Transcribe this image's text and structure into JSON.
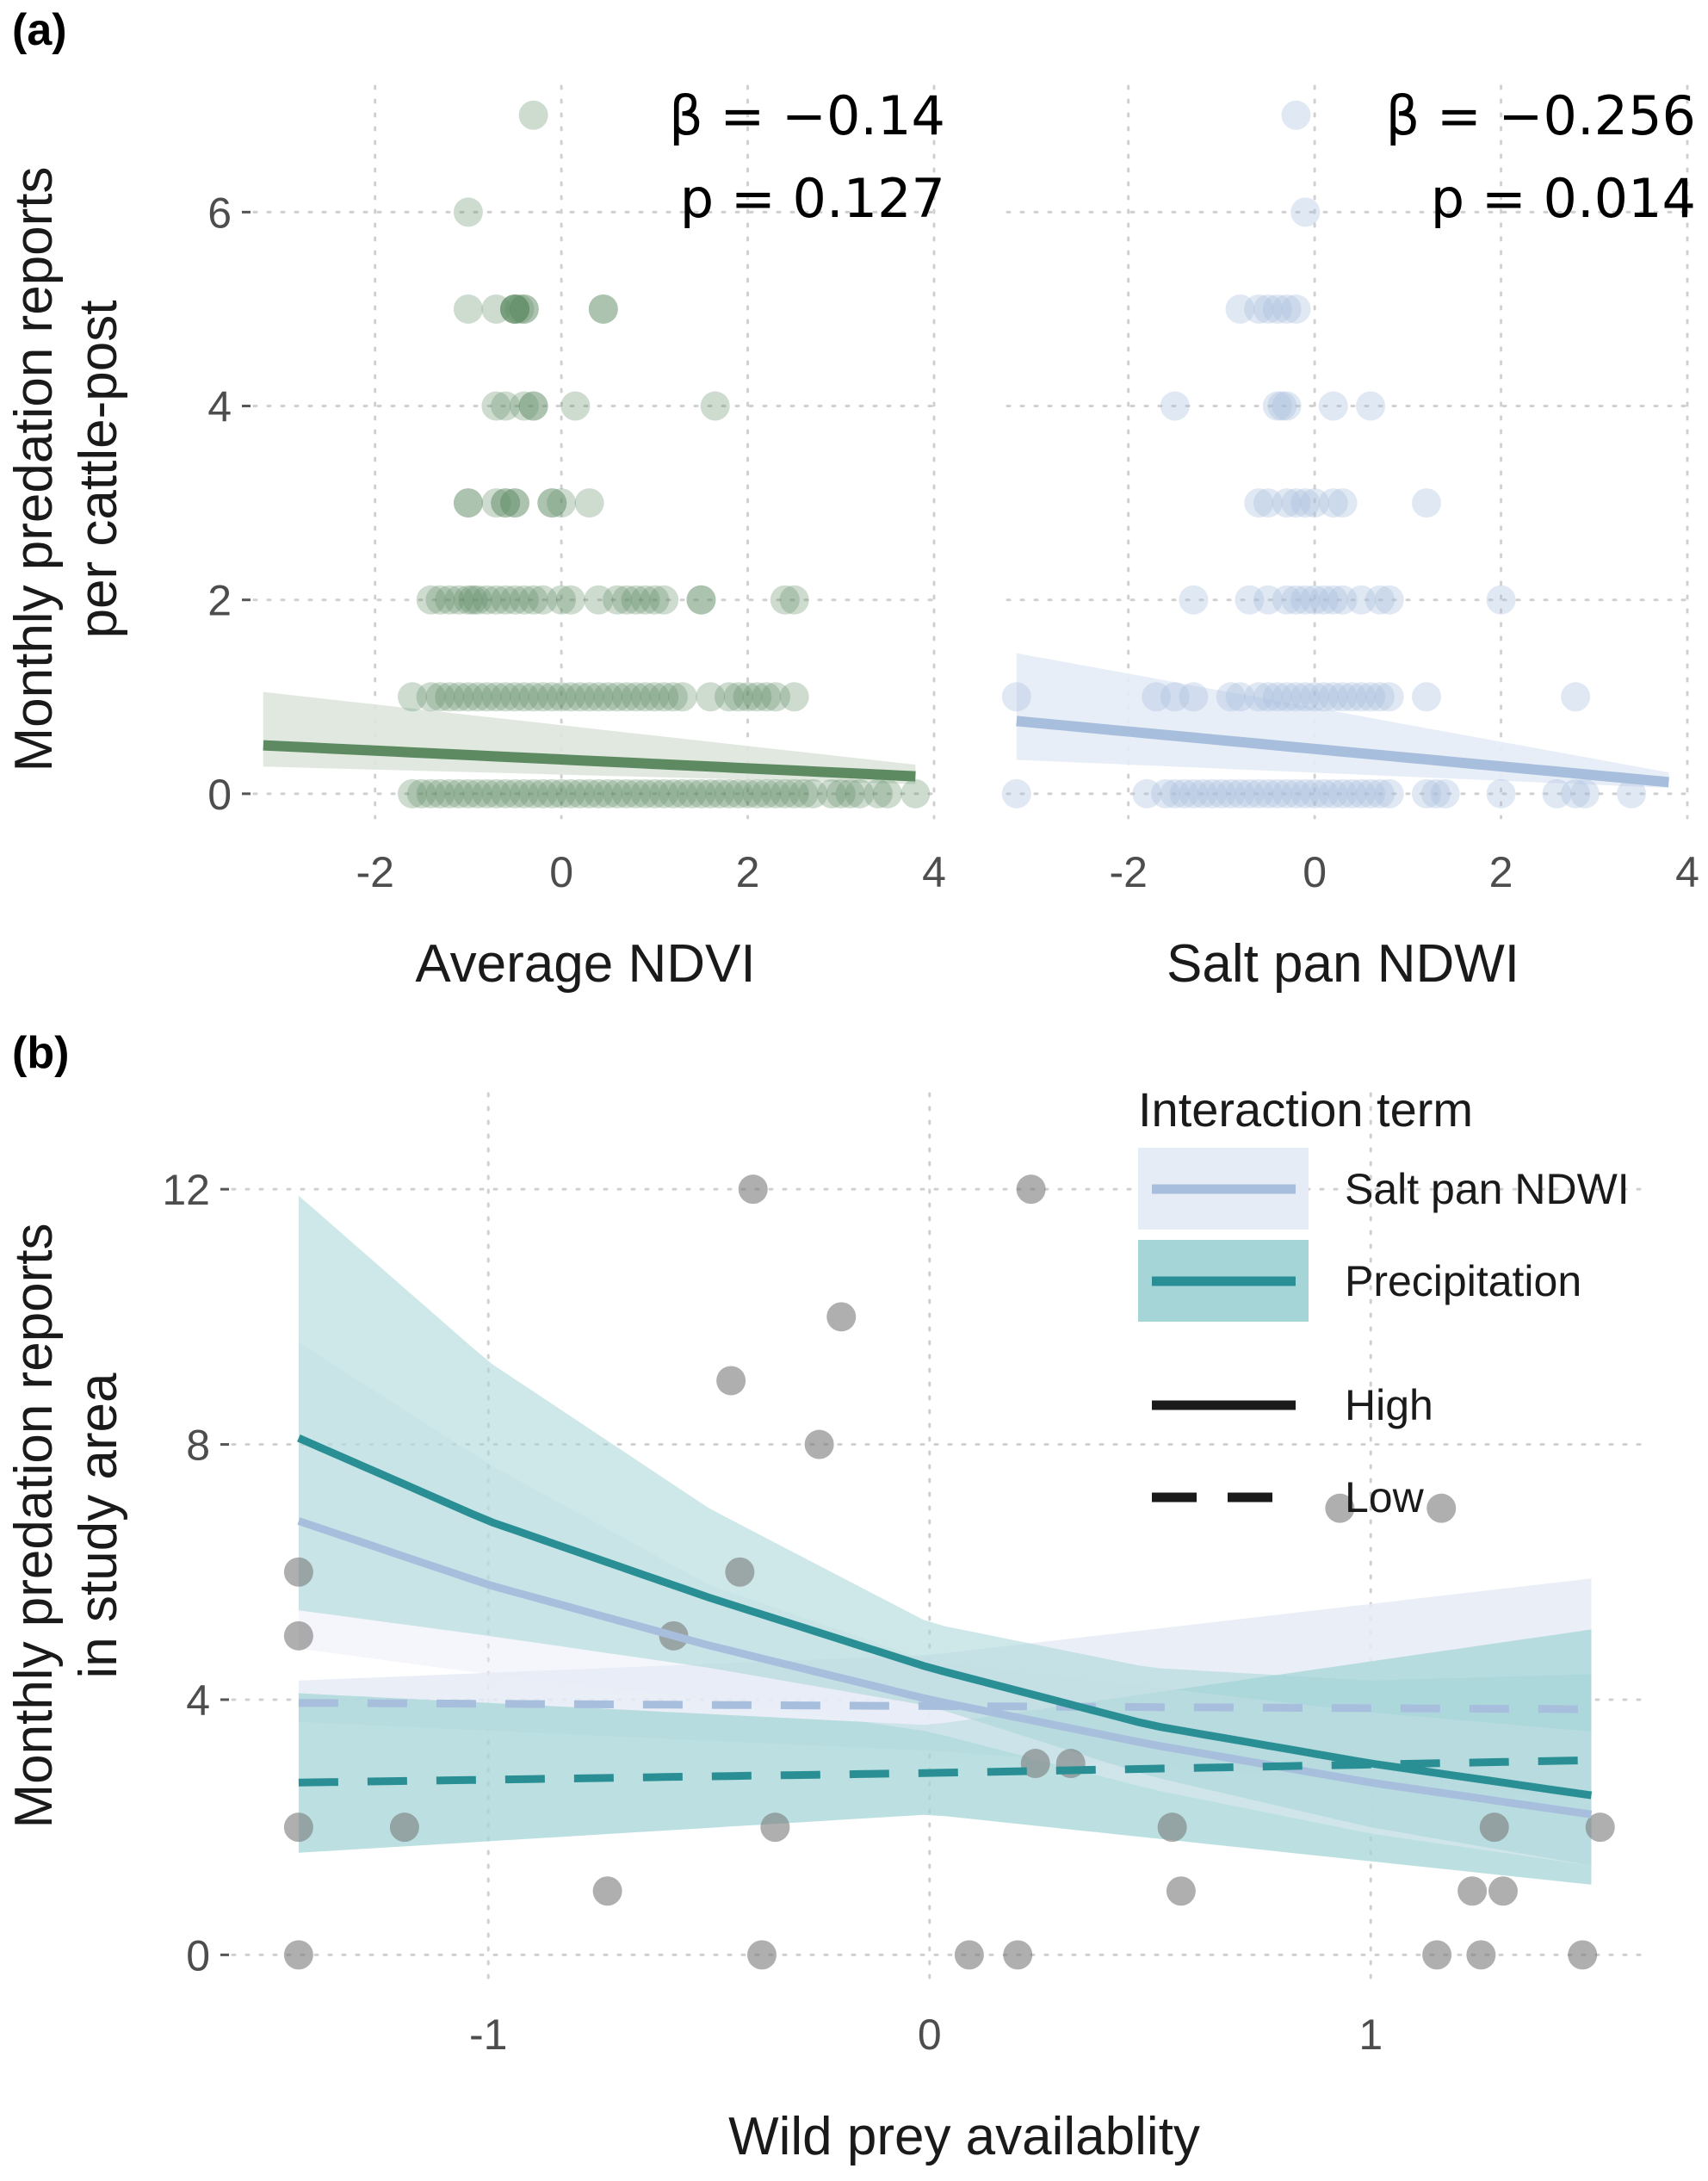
{
  "panel_a": {
    "label": "(a)",
    "ylabel_line1": "Monthly predation reports",
    "ylabel_line2": "per cattle-post",
    "left": {
      "xlabel": "Average NDVI",
      "beta_text": "β = −0.14",
      "p_text": "p = 0.127",
      "x_tick_labels": [
        "-2",
        "0",
        "2",
        "4"
      ],
      "y_tick_labels": [
        "0",
        "2",
        "4",
        "6"
      ]
    },
    "right": {
      "xlabel": "Salt pan NDWI",
      "beta_text": "β = −0.256",
      "p_text": "p = 0.014",
      "x_tick_labels": [
        "-2",
        "0",
        "2",
        "4"
      ]
    }
  },
  "panel_b": {
    "label": "(b)",
    "ylabel_line1": "Monthly predation reports",
    "ylabel_line2": "in study area",
    "xlabel": "Wild prey availablity",
    "x_tick_labels": [
      "-1",
      "0",
      "1"
    ],
    "y_tick_labels": [
      "0",
      "4",
      "8",
      "12"
    ],
    "legend": {
      "title": "Interaction term",
      "items": [
        "Salt pan NDWI",
        "Precipitation"
      ],
      "line_types": [
        "High",
        "Low"
      ]
    }
  },
  "colors": {
    "ndvi": "#5e8a62",
    "ndvi_band": "#dde6dd",
    "ndwi": "#a7bedd",
    "ndwi_band": "#e6ecf6",
    "precip": "#2a8f95",
    "precip_band": "#a6d5d7",
    "points_b": "#9e9e9e"
  },
  "chart_data": [
    {
      "type": "scatter",
      "title": "(a) Average NDVI",
      "xlabel": "Average NDVI",
      "ylabel": "Monthly predation reports per cattle-post",
      "xlim": [
        -3.3,
        4.0
      ],
      "ylim": [
        -0.25,
        7.3
      ],
      "x_ticks": [
        -2,
        0,
        2,
        4
      ],
      "y_ticks": [
        0,
        2,
        4,
        6
      ],
      "annotation": {
        "beta": -0.14,
        "p": 0.127
      },
      "points": [
        [
          -0.3,
          7
        ],
        [
          -1.0,
          6
        ],
        [
          -1.0,
          5
        ],
        [
          -0.7,
          5
        ],
        [
          -0.5,
          5
        ],
        [
          -0.5,
          5
        ],
        [
          -0.4,
          5
        ],
        [
          -0.4,
          5
        ],
        [
          -0.5,
          5
        ],
        [
          -0.5,
          5
        ],
        [
          -0.45,
          5
        ],
        [
          0.45,
          5
        ],
        [
          0.45,
          5
        ],
        [
          -0.7,
          4
        ],
        [
          -0.6,
          4
        ],
        [
          -0.3,
          4
        ],
        [
          -0.3,
          4
        ],
        [
          -0.4,
          4
        ],
        [
          0.15,
          4
        ],
        [
          1.65,
          4
        ],
        [
          -1.0,
          3
        ],
        [
          -1.0,
          3
        ],
        [
          -0.7,
          3
        ],
        [
          -0.6,
          3
        ],
        [
          -0.6,
          3
        ],
        [
          -0.5,
          3
        ],
        [
          -0.5,
          3
        ],
        [
          -0.1,
          3
        ],
        [
          -0.1,
          3
        ],
        [
          0.0,
          3
        ],
        [
          0.3,
          3
        ],
        [
          -1.4,
          2
        ],
        [
          -1.3,
          2
        ],
        [
          -1.2,
          2
        ],
        [
          -1.1,
          2
        ],
        [
          -1.0,
          2
        ],
        [
          -0.95,
          2
        ],
        [
          -0.9,
          2
        ],
        [
          -0.8,
          2
        ],
        [
          -0.7,
          2
        ],
        [
          -0.6,
          2
        ],
        [
          -0.5,
          2
        ],
        [
          -0.4,
          2
        ],
        [
          -0.3,
          2
        ],
        [
          -0.2,
          2
        ],
        [
          0.0,
          2
        ],
        [
          0.1,
          2
        ],
        [
          0.4,
          2
        ],
        [
          0.6,
          2
        ],
        [
          0.7,
          2
        ],
        [
          0.8,
          2
        ],
        [
          0.9,
          2
        ],
        [
          1.0,
          2
        ],
        [
          1.1,
          2
        ],
        [
          1.5,
          2
        ],
        [
          1.5,
          2
        ],
        [
          2.4,
          2
        ],
        [
          2.5,
          2
        ],
        [
          -1.6,
          1
        ],
        [
          -1.4,
          1
        ],
        [
          -1.3,
          1
        ],
        [
          -1.2,
          1
        ],
        [
          -1.1,
          1
        ],
        [
          -1.0,
          1
        ],
        [
          -0.9,
          1
        ],
        [
          -0.8,
          1
        ],
        [
          -0.7,
          1
        ],
        [
          -0.6,
          1
        ],
        [
          -0.5,
          1
        ],
        [
          -0.4,
          1
        ],
        [
          -0.3,
          1
        ],
        [
          -0.2,
          1
        ],
        [
          -0.1,
          1
        ],
        [
          0.0,
          1
        ],
        [
          0.1,
          1
        ],
        [
          0.2,
          1
        ],
        [
          0.3,
          1
        ],
        [
          0.4,
          1
        ],
        [
          0.5,
          1
        ],
        [
          0.6,
          1
        ],
        [
          0.7,
          1
        ],
        [
          0.8,
          1
        ],
        [
          0.9,
          1
        ],
        [
          1.0,
          1
        ],
        [
          1.1,
          1
        ],
        [
          1.2,
          1
        ],
        [
          1.3,
          1
        ],
        [
          1.6,
          1
        ],
        [
          1.8,
          1
        ],
        [
          1.9,
          1
        ],
        [
          2.0,
          1
        ],
        [
          2.1,
          1
        ],
        [
          2.2,
          1
        ],
        [
          2.3,
          1
        ],
        [
          2.5,
          1
        ],
        [
          -1.6,
          0
        ],
        [
          -1.5,
          0
        ],
        [
          -1.4,
          0
        ],
        [
          -1.3,
          0
        ],
        [
          -1.2,
          0
        ],
        [
          -1.1,
          0
        ],
        [
          -1.0,
          0
        ],
        [
          -0.9,
          0
        ],
        [
          -0.8,
          0
        ],
        [
          -0.7,
          0
        ],
        [
          -0.6,
          0
        ],
        [
          -0.5,
          0
        ],
        [
          -0.4,
          0
        ],
        [
          -0.3,
          0
        ],
        [
          -0.2,
          0
        ],
        [
          -0.1,
          0
        ],
        [
          0.0,
          0
        ],
        [
          0.1,
          0
        ],
        [
          0.2,
          0
        ],
        [
          0.3,
          0
        ],
        [
          0.4,
          0
        ],
        [
          0.5,
          0
        ],
        [
          0.6,
          0
        ],
        [
          0.7,
          0
        ],
        [
          0.8,
          0
        ],
        [
          0.9,
          0
        ],
        [
          1.0,
          0
        ],
        [
          1.1,
          0
        ],
        [
          1.2,
          0
        ],
        [
          1.3,
          0
        ],
        [
          1.4,
          0
        ],
        [
          1.5,
          0
        ],
        [
          1.6,
          0
        ],
        [
          1.7,
          0
        ],
        [
          1.8,
          0
        ],
        [
          1.9,
          0
        ],
        [
          2.0,
          0
        ],
        [
          2.1,
          0
        ],
        [
          2.2,
          0
        ],
        [
          2.3,
          0
        ],
        [
          2.4,
          0
        ],
        [
          2.5,
          0
        ],
        [
          2.6,
          0
        ],
        [
          2.7,
          0
        ],
        [
          2.9,
          0
        ],
        [
          3.0,
          0
        ],
        [
          3.1,
          0
        ],
        [
          3.2,
          0
        ],
        [
          3.4,
          0
        ],
        [
          3.5,
          0
        ],
        [
          3.8,
          0
        ]
      ],
      "fit": {
        "x": [
          -3.2,
          3.8
        ],
        "y": [
          0.5,
          0.18
        ],
        "lower": [
          0.28,
          0.1
        ],
        "upper": [
          1.05,
          0.3
        ]
      }
    },
    {
      "type": "scatter",
      "title": "(a) Salt pan NDWI",
      "xlabel": "Salt pan NDWI",
      "xlim": [
        -3.3,
        4.0
      ],
      "ylim": [
        -0.25,
        7.3
      ],
      "x_ticks": [
        -2,
        0,
        2,
        4
      ],
      "y_ticks": [
        0,
        2,
        4,
        6
      ],
      "annotation": {
        "beta": -0.256,
        "p": 0.014
      },
      "points": [
        [
          -0.2,
          7
        ],
        [
          -0.1,
          6
        ],
        [
          -0.8,
          5
        ],
        [
          -0.6,
          5
        ],
        [
          -0.5,
          5
        ],
        [
          -0.4,
          5
        ],
        [
          -0.3,
          5
        ],
        [
          -0.2,
          5
        ],
        [
          -1.5,
          4
        ],
        [
          -0.4,
          4
        ],
        [
          -0.3,
          4
        ],
        [
          -0.35,
          4
        ],
        [
          0.2,
          4
        ],
        [
          0.6,
          4
        ],
        [
          -0.6,
          3
        ],
        [
          -0.5,
          3
        ],
        [
          -0.3,
          3
        ],
        [
          -0.2,
          3
        ],
        [
          -0.1,
          3
        ],
        [
          0.0,
          3
        ],
        [
          0.2,
          3
        ],
        [
          0.3,
          3
        ],
        [
          1.2,
          3
        ],
        [
          -1.3,
          2
        ],
        [
          -0.7,
          2
        ],
        [
          -0.5,
          2
        ],
        [
          -0.3,
          2
        ],
        [
          -0.2,
          2
        ],
        [
          -0.1,
          2
        ],
        [
          0.0,
          2
        ],
        [
          0.1,
          2
        ],
        [
          0.2,
          2
        ],
        [
          0.3,
          2
        ],
        [
          0.5,
          2
        ],
        [
          0.7,
          2
        ],
        [
          0.8,
          2
        ],
        [
          2.0,
          2
        ],
        [
          -3.2,
          1
        ],
        [
          -1.7,
          1
        ],
        [
          -1.5,
          1
        ],
        [
          -1.3,
          1
        ],
        [
          -0.9,
          1
        ],
        [
          -0.8,
          1
        ],
        [
          -0.6,
          1
        ],
        [
          -0.5,
          1
        ],
        [
          -0.4,
          1
        ],
        [
          -0.3,
          1
        ],
        [
          -0.2,
          1
        ],
        [
          -0.1,
          1
        ],
        [
          0.0,
          1
        ],
        [
          0.1,
          1
        ],
        [
          0.2,
          1
        ],
        [
          0.3,
          1
        ],
        [
          0.4,
          1
        ],
        [
          0.5,
          1
        ],
        [
          0.6,
          1
        ],
        [
          0.7,
          1
        ],
        [
          0.8,
          1
        ],
        [
          1.2,
          1
        ],
        [
          2.8,
          1
        ],
        [
          -3.2,
          0
        ],
        [
          -1.8,
          0
        ],
        [
          -1.6,
          0
        ],
        [
          -1.5,
          0
        ],
        [
          -1.4,
          0
        ],
        [
          -1.3,
          0
        ],
        [
          -1.2,
          0
        ],
        [
          -1.1,
          0
        ],
        [
          -1.0,
          0
        ],
        [
          -0.9,
          0
        ],
        [
          -0.8,
          0
        ],
        [
          -0.7,
          0
        ],
        [
          -0.6,
          0
        ],
        [
          -0.5,
          0
        ],
        [
          -0.4,
          0
        ],
        [
          -0.3,
          0
        ],
        [
          -0.2,
          0
        ],
        [
          -0.1,
          0
        ],
        [
          0.0,
          0
        ],
        [
          0.1,
          0
        ],
        [
          0.2,
          0
        ],
        [
          0.3,
          0
        ],
        [
          0.4,
          0
        ],
        [
          0.5,
          0
        ],
        [
          0.6,
          0
        ],
        [
          0.7,
          0
        ],
        [
          0.8,
          0
        ],
        [
          1.2,
          0
        ],
        [
          1.3,
          0
        ],
        [
          1.4,
          0
        ],
        [
          2.0,
          0
        ],
        [
          2.6,
          0
        ],
        [
          2.8,
          0
        ],
        [
          2.9,
          0
        ],
        [
          3.4,
          0
        ]
      ],
      "fit": {
        "x": [
          -3.2,
          3.8
        ],
        "y": [
          0.75,
          0.12
        ],
        "lower": [
          0.35,
          0.06
        ],
        "upper": [
          1.45,
          0.22
        ]
      }
    },
    {
      "type": "line",
      "title": "(b)",
      "xlabel": "Wild prey availablity",
      "ylabel": "Monthly predation reports in study area",
      "xlim": [
        -1.58,
        1.62
      ],
      "ylim": [
        -0.4,
        13.5
      ],
      "x_ticks": [
        -1,
        0,
        1
      ],
      "y_ticks": [
        0,
        4,
        8,
        12
      ],
      "points": [
        [
          -1.43,
          0
        ],
        [
          -1.43,
          2
        ],
        [
          -1.43,
          5
        ],
        [
          -1.43,
          6
        ],
        [
          -1.19,
          2
        ],
        [
          -0.73,
          1
        ],
        [
          -0.58,
          5
        ],
        [
          -0.45,
          9
        ],
        [
          -0.43,
          6
        ],
        [
          -0.4,
          12
        ],
        [
          -0.38,
          0
        ],
        [
          -0.35,
          2
        ],
        [
          -0.25,
          8
        ],
        [
          -0.2,
          10
        ],
        [
          0.09,
          0
        ],
        [
          0.2,
          0
        ],
        [
          0.23,
          12
        ],
        [
          0.24,
          3
        ],
        [
          0.32,
          3
        ],
        [
          0.55,
          2
        ],
        [
          0.57,
          1
        ],
        [
          0.93,
          7
        ],
        [
          1.15,
          0
        ],
        [
          1.16,
          7
        ],
        [
          1.23,
          1
        ],
        [
          1.25,
          0
        ],
        [
          1.28,
          2
        ],
        [
          1.3,
          1
        ],
        [
          1.48,
          0
        ],
        [
          1.52,
          2
        ]
      ],
      "series": [
        {
          "name": "Salt pan NDWI",
          "level": "High",
          "x": [
            -1.43,
            -1.0,
            -0.5,
            0.0,
            0.5,
            1.0,
            1.5
          ],
          "y": [
            6.8,
            5.8,
            4.85,
            4.0,
            3.3,
            2.7,
            2.2
          ],
          "lower": [
            4.8,
            4.4,
            4.0,
            3.5,
            2.6,
            1.9,
            1.4
          ],
          "upper": [
            9.6,
            7.7,
            5.8,
            4.6,
            4.2,
            3.8,
            3.5
          ]
        },
        {
          "name": "Salt pan NDWI",
          "level": "Low",
          "x": [
            -1.43,
            0.0,
            1.5
          ],
          "y": [
            3.95,
            3.9,
            3.85
          ],
          "lower": [
            3.65,
            3.2,
            2.45
          ],
          "upper": [
            4.3,
            4.7,
            5.9
          ]
        },
        {
          "name": "Precipitation",
          "level": "High",
          "x": [
            -1.43,
            -1.0,
            -0.5,
            0.0,
            0.5,
            1.0,
            1.5
          ],
          "y": [
            8.1,
            6.8,
            5.6,
            4.5,
            3.6,
            3.0,
            2.5
          ],
          "lower": [
            5.4,
            5.0,
            4.5,
            3.9,
            2.8,
            2.0,
            1.4
          ],
          "upper": [
            11.9,
            9.3,
            7.0,
            5.2,
            4.5,
            4.3,
            4.4
          ]
        },
        {
          "name": "Precipitation",
          "level": "Low",
          "x": [
            -1.43,
            0.0,
            1.5
          ],
          "y": [
            2.7,
            2.85,
            3.05
          ],
          "lower": [
            1.6,
            2.2,
            1.1
          ],
          "upper": [
            4.1,
            3.6,
            5.1
          ]
        }
      ]
    }
  ]
}
